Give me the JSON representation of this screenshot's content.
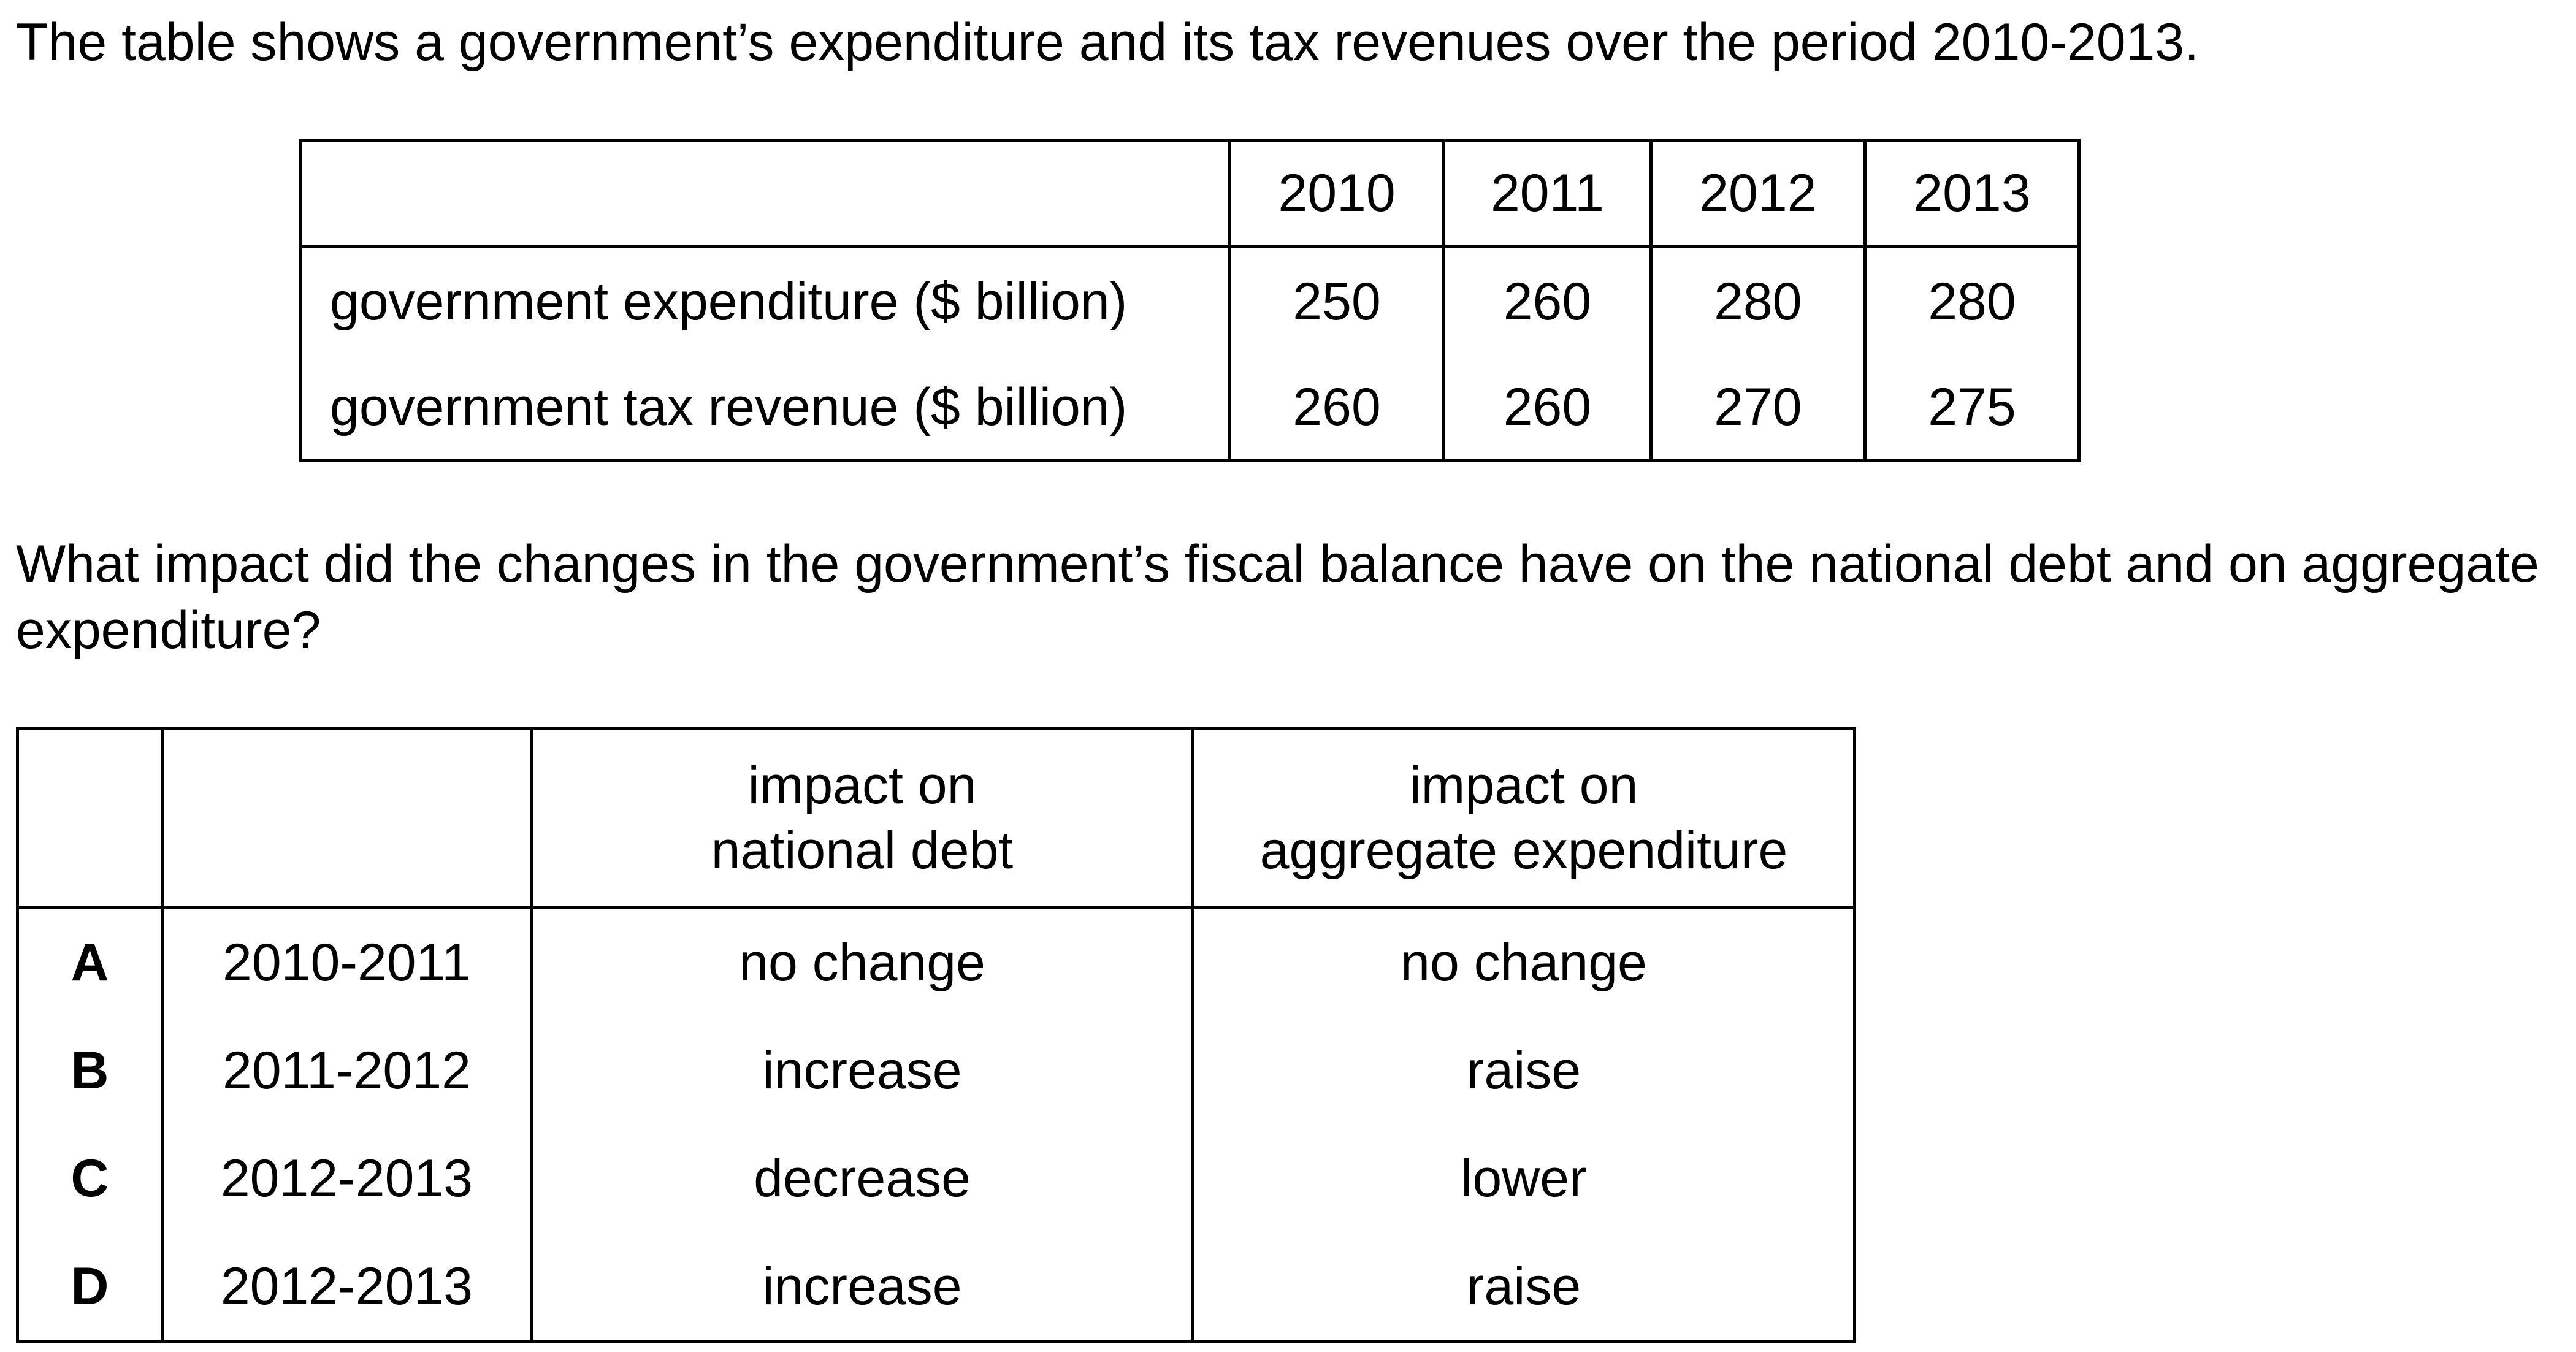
{
  "intro": "The table shows a government’s expenditure and its tax revenues over the period 2010-2013.",
  "data_table": {
    "years": [
      "2010",
      "2011",
      "2012",
      "2013"
    ],
    "rows": [
      {
        "label": "government expenditure ($ billion)",
        "values": [
          "250",
          "260",
          "280",
          "280"
        ]
      },
      {
        "label": "government tax revenue ($ billion)",
        "values": [
          "260",
          "260",
          "270",
          "275"
        ]
      }
    ]
  },
  "question": "What impact did the changes in the government’s fiscal balance have on the national debt and on aggregate expenditure?",
  "options_table": {
    "headers": {
      "debt_line1": "impact on",
      "debt_line2": "national debt",
      "agg_line1": "impact on",
      "agg_line2": "aggregate expenditure"
    },
    "options": [
      {
        "letter": "A",
        "period": "2010-2011",
        "debt": "no change",
        "agg": "no change"
      },
      {
        "letter": "B",
        "period": "2011-2012",
        "debt": "increase",
        "agg": "raise"
      },
      {
        "letter": "C",
        "period": "2012-2013",
        "debt": "decrease",
        "agg": "lower"
      },
      {
        "letter": "D",
        "period": "2012-2013",
        "debt": "increase",
        "agg": "raise"
      }
    ]
  }
}
